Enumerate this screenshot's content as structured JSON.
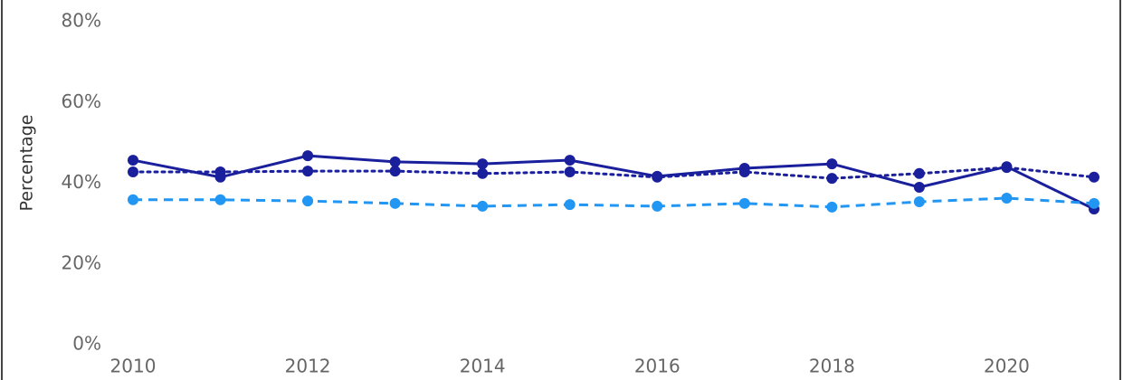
{
  "chart_data": {
    "type": "line",
    "y_label": "Percentage",
    "x": [
      2010,
      2011,
      2012,
      2013,
      2014,
      2015,
      2016,
      2017,
      2018,
      2019,
      2020,
      2021
    ],
    "xlim": [
      2010,
      2021
    ],
    "xticks": [
      2010,
      2012,
      2014,
      2016,
      2018,
      2020
    ],
    "ylim": [
      0,
      80
    ],
    "yticks": [
      {
        "value": 0,
        "label": "0%"
      },
      {
        "value": 20,
        "label": "20%"
      },
      {
        "value": 40,
        "label": "40%"
      },
      {
        "value": 60,
        "label": "60%"
      },
      {
        "value": 80,
        "label": "80%"
      }
    ],
    "series": [
      {
        "color": "#1a1f9c",
        "dash": "solid",
        "values": [
          45.7,
          41.5,
          46.8,
          45.3,
          44.8,
          45.7,
          41.7,
          43.7,
          44.8,
          39.0,
          44.1,
          33.6
        ]
      },
      {
        "color": "#1a1f9c",
        "dash": "dotted",
        "values": [
          42.8,
          42.8,
          43.0,
          43.0,
          42.4,
          42.8,
          41.5,
          42.8,
          41.2,
          42.4,
          43.9,
          41.5
        ]
      },
      {
        "color": "#2196f3",
        "dash": "dashed",
        "values": [
          35.9,
          35.9,
          35.6,
          35.0,
          34.3,
          34.7,
          34.3,
          35.0,
          34.1,
          35.4,
          36.3,
          35.0
        ]
      }
    ]
  }
}
